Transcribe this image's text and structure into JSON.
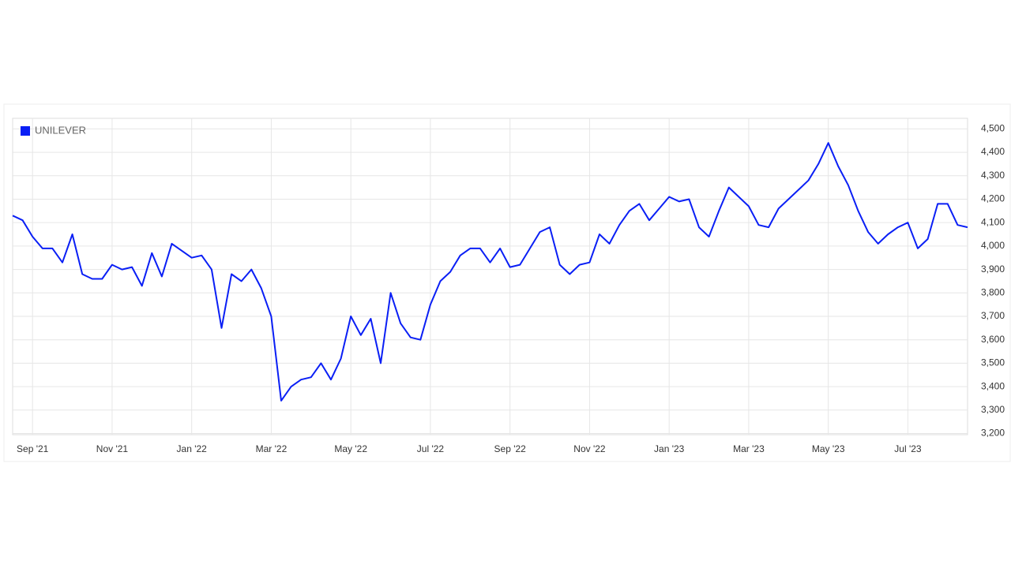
{
  "chart_data": {
    "type": "line",
    "categories": [
      null,
      null,
      "Sep '21",
      null,
      null,
      null,
      null,
      null,
      null,
      null,
      "Nov '21",
      null,
      null,
      null,
      null,
      null,
      null,
      null,
      "Jan '22",
      null,
      null,
      null,
      null,
      null,
      null,
      null,
      "Mar '22",
      null,
      null,
      null,
      null,
      null,
      null,
      null,
      "May '22",
      null,
      null,
      null,
      null,
      null,
      null,
      null,
      "Jul '22",
      null,
      null,
      null,
      null,
      null,
      null,
      null,
      "Sep '22",
      null,
      null,
      null,
      null,
      null,
      null,
      null,
      "Nov '22",
      null,
      null,
      null,
      null,
      null,
      null,
      null,
      "Jan '23",
      null,
      null,
      null,
      null,
      null,
      null,
      null,
      "Mar '23",
      null,
      null,
      null,
      null,
      null,
      null,
      null,
      "May '23",
      null,
      null,
      null,
      null,
      null,
      null,
      null,
      "Jul '23",
      null,
      null,
      null,
      null,
      null,
      null
    ],
    "series": [
      {
        "name": "UNILEVER",
        "color": "#0a1ff5",
        "values": [
          4130,
          4110,
          4040,
          3990,
          3990,
          3930,
          4050,
          3880,
          3860,
          3860,
          3920,
          3900,
          3910,
          3830,
          3970,
          3870,
          4010,
          3980,
          3950,
          3960,
          3900,
          3650,
          3880,
          3850,
          3900,
          3820,
          3700,
          3340,
          3400,
          3430,
          3440,
          3500,
          3430,
          3520,
          3700,
          3620,
          3690,
          3500,
          3800,
          3670,
          3610,
          3600,
          3750,
          3850,
          3890,
          3960,
          3990,
          3990,
          3930,
          3990,
          3910,
          3920,
          3990,
          4060,
          4080,
          3920,
          3880,
          3920,
          3930,
          4050,
          4010,
          4090,
          4150,
          4180,
          4110,
          4160,
          4210,
          4190,
          4200,
          4080,
          4040,
          4150,
          4250,
          4210,
          4170,
          4090,
          4080,
          4160,
          4200,
          4240,
          4280,
          4350,
          4440,
          4340,
          4260,
          4150,
          4060,
          4010,
          4050,
          4080,
          4100,
          3990,
          4030,
          4180,
          4180,
          4090,
          4080
        ]
      }
    ],
    "ylim": [
      3195,
      4545
    ],
    "yticks": [
      {
        "value": 3200,
        "label": "3,200"
      },
      {
        "value": 3300,
        "label": "3,300"
      },
      {
        "value": 3400,
        "label": "3,400"
      },
      {
        "value": 3500,
        "label": "3,500"
      },
      {
        "value": 3600,
        "label": "3,600"
      },
      {
        "value": 3700,
        "label": "3,700"
      },
      {
        "value": 3800,
        "label": "3,800"
      },
      {
        "value": 3900,
        "label": "3,900"
      },
      {
        "value": 4000,
        "label": "4,000"
      },
      {
        "value": 4100,
        "label": "4,100"
      },
      {
        "value": 4200,
        "label": "4,200"
      },
      {
        "value": 4300,
        "label": "4,300"
      },
      {
        "value": 4400,
        "label": "4,400"
      },
      {
        "value": 4500,
        "label": "4,500"
      }
    ],
    "grid": true,
    "legend": "top-left"
  }
}
